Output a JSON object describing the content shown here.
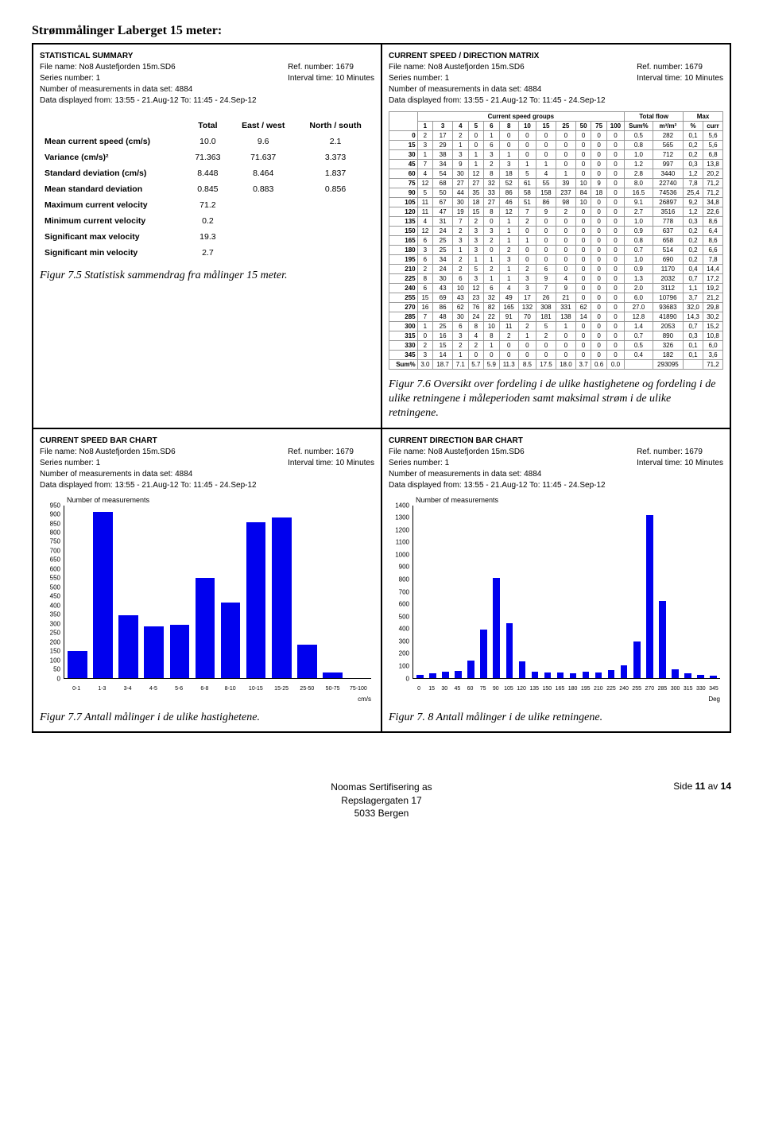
{
  "page_title": "Strømmålinger Laberget 15 meter:",
  "captions": {
    "c1": "Figur 7.5 Statistisk sammendrag fra målinger 15 meter.",
    "c2": "Figur 7.6 Oversikt over fordeling i de ulike hastighetene og fordeling i de ulike retningene i måleperioden samt maksimal strøm i de ulike retningene.",
    "c3": "Figur 7.7 Antall målinger i de ulike hastighetene.",
    "c4": "Figur 7. 8 Antall målinger i de ulike retningene."
  },
  "stat_header": {
    "title": "STATISTICAL SUMMARY",
    "file": "File name: No8 Austefjorden 15m.SD6",
    "series": "Series number: 1",
    "nmeas": "Number of measurements in data set: 4884",
    "range": "Data displayed from: 13:55 - 21.Aug-12   To: 11:45 - 24.Sep-12",
    "ref": "Ref. number: 1679",
    "interval": "Interval time: 10 Minutes",
    "cols": [
      "Total",
      "East / west",
      "North / south"
    ],
    "rows": [
      {
        "label": "Mean current speed (cm/s)",
        "v": [
          "10.0",
          "9.6",
          "2.1"
        ]
      },
      {
        "label": "Variance (cm/s)²",
        "v": [
          "71.363",
          "71.637",
          "3.373"
        ]
      },
      {
        "label": "Standard deviation (cm/s)",
        "v": [
          "8.448",
          "8.464",
          "1.837"
        ]
      },
      {
        "label": "Mean standard deviation",
        "v": [
          "0.845",
          "0.883",
          "0.856"
        ]
      },
      {
        "label": "Maximum current velocity",
        "v": [
          "71.2",
          "",
          ""
        ]
      },
      {
        "label": "Minimum  current velocity",
        "v": [
          "0.2",
          "",
          ""
        ]
      },
      {
        "label": "Significant max velocity",
        "v": [
          "19.3",
          "",
          ""
        ]
      },
      {
        "label": "Significant min velocity",
        "v": [
          "2.7",
          "",
          ""
        ]
      }
    ]
  },
  "matrix_header": {
    "title": "CURRENT SPEED / DIRECTION MATRIX",
    "file": "File name: No8 Austefjorden 15m.SD6",
    "series": "Series number: 1",
    "nmeas": "Number of measurements in data set: 4884",
    "range": "Data displayed from: 13:55 - 21.Aug-12   To: 11:45 - 24.Sep-12",
    "ref": "Ref. number: 1679",
    "interval": "Interval time: 10 Minutes",
    "group_label": "Current speed groups",
    "tot_label": "Total flow",
    "max_label": "Max",
    "speed_cols": [
      "1",
      "3",
      "4",
      "5",
      "6",
      "8",
      "10",
      "15",
      "25",
      "50",
      "75",
      "100"
    ],
    "extra_cols": [
      "Sum%",
      "m³/m²",
      "%",
      "curr"
    ],
    "rows": [
      {
        "h": "0",
        "c": [
          "2",
          "17",
          "2",
          "0",
          "1",
          "0",
          "0",
          "0",
          "0",
          "0",
          "0",
          "0",
          "0.5",
          "282",
          "0,1",
          "5,6"
        ]
      },
      {
        "h": "15",
        "c": [
          "3",
          "29",
          "1",
          "0",
          "6",
          "0",
          "0",
          "0",
          "0",
          "0",
          "0",
          "0",
          "0.8",
          "565",
          "0,2",
          "5,6"
        ]
      },
      {
        "h": "30",
        "c": [
          "1",
          "38",
          "3",
          "1",
          "3",
          "1",
          "0",
          "0",
          "0",
          "0",
          "0",
          "0",
          "1.0",
          "712",
          "0,2",
          "6,8"
        ]
      },
      {
        "h": "45",
        "c": [
          "7",
          "34",
          "9",
          "1",
          "2",
          "3",
          "1",
          "1",
          "0",
          "0",
          "0",
          "0",
          "1.2",
          "997",
          "0,3",
          "13,8"
        ]
      },
      {
        "h": "60",
        "c": [
          "4",
          "54",
          "30",
          "12",
          "8",
          "18",
          "5",
          "4",
          "1",
          "0",
          "0",
          "0",
          "2.8",
          "3440",
          "1,2",
          "20,2"
        ]
      },
      {
        "h": "75",
        "c": [
          "12",
          "68",
          "27",
          "27",
          "32",
          "52",
          "61",
          "55",
          "39",
          "10",
          "9",
          "0",
          "8.0",
          "22740",
          "7,8",
          "71,2"
        ]
      },
      {
        "h": "90",
        "c": [
          "5",
          "50",
          "44",
          "35",
          "33",
          "86",
          "58",
          "158",
          "237",
          "84",
          "18",
          "0",
          "16.5",
          "74536",
          "25,4",
          "71,2"
        ]
      },
      {
        "h": "105",
        "c": [
          "11",
          "67",
          "30",
          "18",
          "27",
          "46",
          "51",
          "86",
          "98",
          "10",
          "0",
          "0",
          "9.1",
          "26897",
          "9,2",
          "34,8"
        ]
      },
      {
        "h": "120",
        "c": [
          "11",
          "47",
          "19",
          "15",
          "8",
          "12",
          "7",
          "9",
          "2",
          "0",
          "0",
          "0",
          "2.7",
          "3516",
          "1,2",
          "22,6"
        ]
      },
      {
        "h": "135",
        "c": [
          "4",
          "31",
          "7",
          "2",
          "0",
          "1",
          "2",
          "0",
          "0",
          "0",
          "0",
          "0",
          "1.0",
          "778",
          "0,3",
          "8,6"
        ]
      },
      {
        "h": "150",
        "c": [
          "12",
          "24",
          "2",
          "3",
          "3",
          "1",
          "0",
          "0",
          "0",
          "0",
          "0",
          "0",
          "0.9",
          "637",
          "0,2",
          "6,4"
        ]
      },
      {
        "h": "165",
        "c": [
          "6",
          "25",
          "3",
          "3",
          "2",
          "1",
          "1",
          "0",
          "0",
          "0",
          "0",
          "0",
          "0.8",
          "658",
          "0,2",
          "8,6"
        ]
      },
      {
        "h": "180",
        "c": [
          "3",
          "25",
          "1",
          "3",
          "0",
          "2",
          "0",
          "0",
          "0",
          "0",
          "0",
          "0",
          "0.7",
          "514",
          "0,2",
          "6,6"
        ]
      },
      {
        "h": "195",
        "c": [
          "6",
          "34",
          "2",
          "1",
          "1",
          "3",
          "0",
          "0",
          "0",
          "0",
          "0",
          "0",
          "1.0",
          "690",
          "0,2",
          "7,8"
        ]
      },
      {
        "h": "210",
        "c": [
          "2",
          "24",
          "2",
          "5",
          "2",
          "1",
          "2",
          "6",
          "0",
          "0",
          "0",
          "0",
          "0.9",
          "1170",
          "0,4",
          "14,4"
        ]
      },
      {
        "h": "225",
        "c": [
          "8",
          "30",
          "6",
          "3",
          "1",
          "1",
          "3",
          "9",
          "4",
          "0",
          "0",
          "0",
          "1.3",
          "2032",
          "0,7",
          "17,2"
        ]
      },
      {
        "h": "240",
        "c": [
          "6",
          "43",
          "10",
          "12",
          "6",
          "4",
          "3",
          "7",
          "9",
          "0",
          "0",
          "0",
          "2.0",
          "3112",
          "1,1",
          "19,2"
        ]
      },
      {
        "h": "255",
        "c": [
          "15",
          "69",
          "43",
          "23",
          "32",
          "49",
          "17",
          "26",
          "21",
          "0",
          "0",
          "0",
          "6.0",
          "10796",
          "3,7",
          "21,2"
        ]
      },
      {
        "h": "270",
        "c": [
          "16",
          "86",
          "62",
          "76",
          "82",
          "165",
          "132",
          "308",
          "331",
          "62",
          "0",
          "0",
          "27.0",
          "93683",
          "32,0",
          "29,8"
        ]
      },
      {
        "h": "285",
        "c": [
          "7",
          "48",
          "30",
          "24",
          "22",
          "91",
          "70",
          "181",
          "138",
          "14",
          "0",
          "0",
          "12.8",
          "41890",
          "14,3",
          "30,2"
        ]
      },
      {
        "h": "300",
        "c": [
          "1",
          "25",
          "6",
          "8",
          "10",
          "11",
          "2",
          "5",
          "1",
          "0",
          "0",
          "0",
          "1.4",
          "2053",
          "0,7",
          "15,2"
        ]
      },
      {
        "h": "315",
        "c": [
          "0",
          "16",
          "3",
          "4",
          "8",
          "2",
          "1",
          "2",
          "0",
          "0",
          "0",
          "0",
          "0.7",
          "890",
          "0,3",
          "10,8"
        ]
      },
      {
        "h": "330",
        "c": [
          "2",
          "15",
          "2",
          "2",
          "1",
          "0",
          "0",
          "0",
          "0",
          "0",
          "0",
          "0",
          "0.5",
          "326",
          "0,1",
          "6,0"
        ]
      },
      {
        "h": "345",
        "c": [
          "3",
          "14",
          "1",
          "0",
          "0",
          "0",
          "0",
          "0",
          "0",
          "0",
          "0",
          "0",
          "0.4",
          "182",
          "0,1",
          "3,6"
        ]
      }
    ],
    "sum_row": {
      "h": "Sum%",
      "c": [
        "3.0",
        "18.7",
        "7.1",
        "5.7",
        "5.9",
        "11.3",
        "8.5",
        "17.5",
        "18.0",
        "3.7",
        "0.6",
        "0.0",
        "",
        "293095",
        "",
        "71,2"
      ]
    }
  },
  "speed_chart": {
    "title": "CURRENT SPEED BAR CHART",
    "file": "File name: No8 Austefjorden 15m.SD6",
    "series": "Series number: 1",
    "nmeas": "Number of measurements in data set: 4884",
    "range": "Data displayed from: 13:55 - 21.Aug-12   To: 11:45 - 24.Sep-12",
    "ref": "Ref. number: 1679",
    "interval": "Interval time: 10 Minutes",
    "ylabel": "Number of measurements",
    "ymax": 950,
    "ytick_step": 50,
    "bar_color": "#0000ee",
    "categories": [
      "0-1",
      "1-3",
      "3-4",
      "4-5",
      "5-6",
      "6-8",
      "8-10",
      "10-15",
      "15-25",
      "25-50",
      "50-75",
      "75-100"
    ],
    "values": [
      147,
      913,
      345,
      282,
      290,
      550,
      416,
      857,
      881,
      180,
      27,
      0
    ],
    "xunit": "cm/s"
  },
  "dir_chart": {
    "title": "CURRENT DIRECTION BAR CHART",
    "file": "File name: No8 Austefjorden 15m.SD6",
    "series": "Series number: 1",
    "nmeas": "Number of measurements in data set: 4884",
    "range": "Data displayed from: 13:55 - 21.Aug-12   To: 11:45 - 24.Sep-12",
    "ref": "Ref. number: 1679",
    "interval": "Interval time: 10 Minutes",
    "ylabel": "Number of measurements",
    "ymax": 1400,
    "ytick_step": 100,
    "bar_color": "#0000ee",
    "categories": [
      "0",
      "15",
      "30",
      "45",
      "60",
      "75",
      "90",
      "105",
      "120",
      "135",
      "150",
      "165",
      "180",
      "195",
      "210",
      "225",
      "240",
      "255",
      "270",
      "285",
      "300",
      "315",
      "330",
      "345"
    ],
    "values": [
      22,
      39,
      47,
      58,
      136,
      392,
      808,
      444,
      130,
      47,
      45,
      41,
      34,
      47,
      44,
      65,
      100,
      295,
      1320,
      625,
      69,
      36,
      22,
      18
    ],
    "xunit": "Deg"
  },
  "footer": {
    "l1": "Noomas Sertifisering as",
    "l2": "Repslagergaten 17",
    "l3": "5033 Bergen",
    "pg_pre": "Side ",
    "pg_cur": "11",
    "pg_mid": " av ",
    "pg_tot": "14"
  }
}
